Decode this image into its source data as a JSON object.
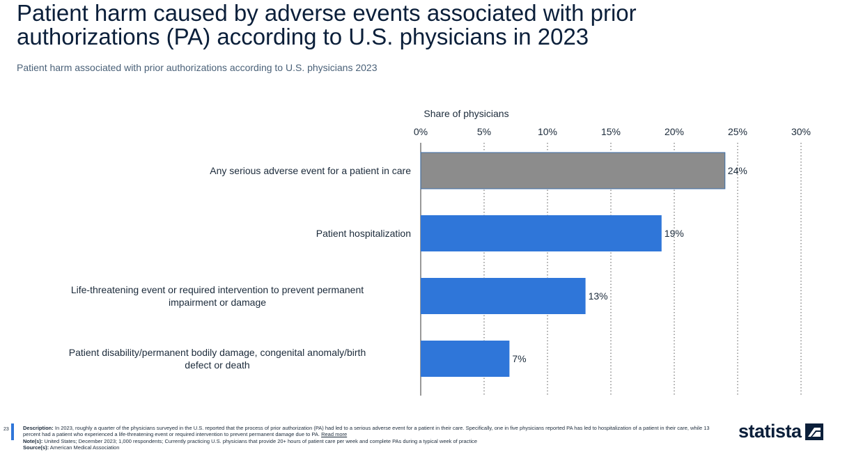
{
  "header": {
    "title": "Patient harm caused by adverse events associated with prior authorizations (PA) according to U.S. physicians in 2023",
    "subtitle": "Patient harm associated with prior authorizations according to U.S. physicians 2023"
  },
  "chart_data": {
    "type": "bar",
    "orientation": "horizontal",
    "xlabel": "Share of physicians",
    "xlim": [
      0,
      30
    ],
    "xticks": [
      "0%",
      "5%",
      "10%",
      "15%",
      "20%",
      "25%",
      "30%"
    ],
    "grid": "vertical dotted",
    "categories": [
      "Any serious adverse event for a patient in care",
      "Patient hospitalization",
      "Life-threatening event or required intervention to prevent permanent impairment or damage",
      "Patient disability/permanent bodily damage, congenital anomaly/birth defect or death"
    ],
    "values": [
      24,
      19,
      13,
      7
    ],
    "data_labels": [
      "24%",
      "19%",
      "13%",
      "7%"
    ],
    "colors": [
      "#8c8c8c",
      "#2f76d9",
      "#2f76d9",
      "#2f76d9"
    ]
  },
  "footer": {
    "page_number": "23",
    "description_label": "Description:",
    "description": "In 2023, roughly a quarter of the physicians surveyed in the U.S. reported that the process of prior authorization (PA) had led to a serious adverse event for a patient in their care. Specifically, one in five physicians reported PA has led to hospitalization of a patient in their care, while 13 percent had a patient who experienced a life-threatening event or required intervention to prevent permanent damage due to PA.",
    "read_more": "Read more",
    "notes_label": "Note(s):",
    "notes": "United States; December 2023; 1,000 respondents; Currently practicing U.S. physicians that provide 20+ hours of patient care per week and complete PAs during a typical week of practice",
    "source_label": "Source(s):",
    "source": "American Medical Association",
    "logo_text": "statista"
  }
}
